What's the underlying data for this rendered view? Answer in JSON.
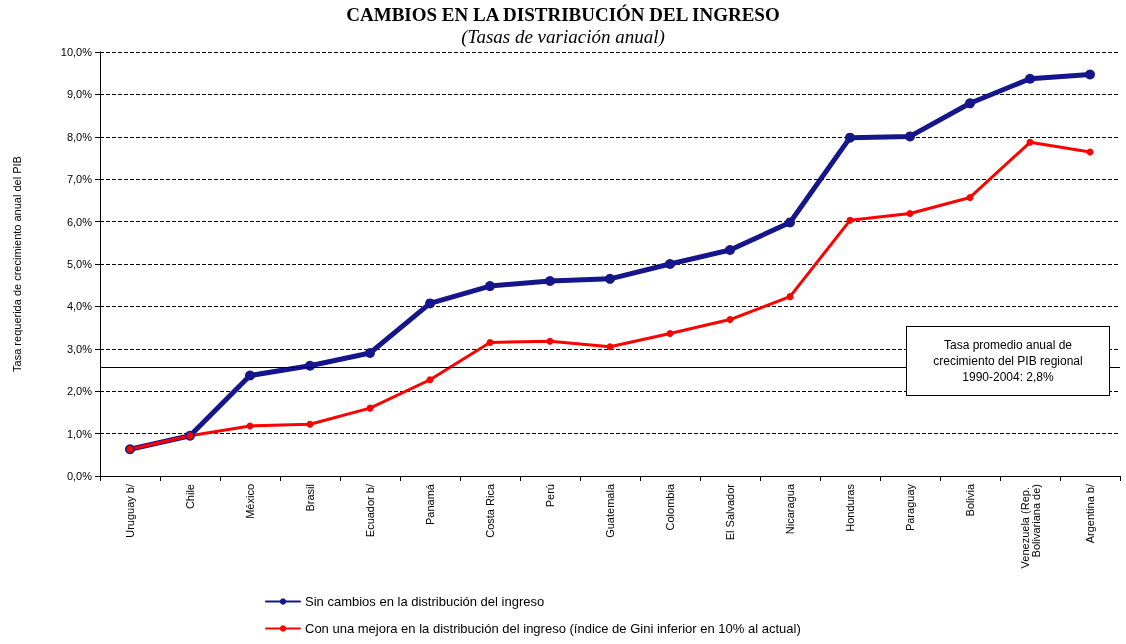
{
  "chart_data": {
    "type": "line",
    "title": "CAMBIOS EN LA DISTRIBUCIÓN DEL INGRESO",
    "subtitle": "(Tasas de variación anual)",
    "ylabel": "Tasa requerida de crecimiento anual del PIB",
    "categories": [
      "Uruguay b/",
      "Chile",
      "México",
      "Brasil",
      "Ecuador b/",
      "Panamá",
      "Costa Rica",
      "Perú",
      "Guatemala",
      "Colombia",
      "El Salvador",
      "Nicaragua",
      "Honduras",
      "Paraguay",
      "Bolivia",
      "Venezuela (Rep. Bolivariana de)",
      "Argentina b/"
    ],
    "series": [
      {
        "name": "Sin cambios en la distribución del ingreso",
        "color": "#16168c",
        "values": [
          0.63,
          0.95,
          2.37,
          2.6,
          2.9,
          4.07,
          4.48,
          4.6,
          4.65,
          5.0,
          5.33,
          5.98,
          7.98,
          8.01,
          8.79,
          9.37,
          9.47
        ]
      },
      {
        "name": "Con una mejora en la distribución del ingreso (índice de Gini inferior en 10% al actual)",
        "color": "#ff0000",
        "values": [
          0.63,
          0.95,
          1.18,
          1.22,
          1.6,
          2.27,
          3.15,
          3.18,
          3.05,
          3.36,
          3.69,
          4.23,
          6.03,
          6.19,
          6.57,
          7.87,
          7.64
        ]
      }
    ],
    "ylim": [
      0,
      10
    ],
    "yticks": [
      {
        "value": 0,
        "label": "0,0%"
      },
      {
        "value": 1,
        "label": "1,0%"
      },
      {
        "value": 2,
        "label": "2,0%"
      },
      {
        "value": 3,
        "label": "3,0%"
      },
      {
        "value": 4,
        "label": "4,0%"
      },
      {
        "value": 5,
        "label": "5,0%"
      },
      {
        "value": 6,
        "label": "6,0%"
      },
      {
        "value": 7,
        "label": "7,0%"
      },
      {
        "value": 8,
        "label": "8,0%"
      },
      {
        "value": 9,
        "label": "9,0%"
      },
      {
        "value": 10,
        "label": "10,0%"
      }
    ],
    "ref_lines": [
      {
        "axis": "y",
        "value": 2.56,
        "color": "#000000",
        "line_style": "solid"
      }
    ],
    "annotations": [
      "Tasa promedio anual de crecimiento del PIB regional 1990-2004: 2,8%"
    ],
    "grid": "y",
    "legend": "bottom",
    "marker": "circle",
    "line_style": "solid"
  }
}
